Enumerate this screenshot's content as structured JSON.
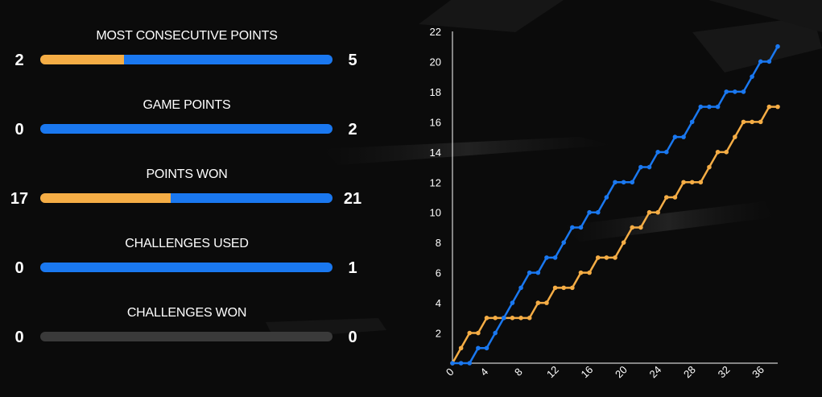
{
  "colors": {
    "team_a": "#f5ad45",
    "team_b": "#1a78f0",
    "neutral": "#3a3a3a"
  },
  "stats": [
    {
      "label": "MOST CONSECUTIVE POINTS",
      "left": "2",
      "right": "5",
      "a": 2,
      "b": 5
    },
    {
      "label": "GAME POINTS",
      "left": "0",
      "right": "2",
      "a": 0,
      "b": 2
    },
    {
      "label": "POINTS WON",
      "left": "17",
      "right": "21",
      "a": 17,
      "b": 21
    },
    {
      "label": "CHALLENGES USED",
      "left": "0",
      "right": "1",
      "a": 0,
      "b": 1
    },
    {
      "label": "CHALLENGES WON",
      "left": "0",
      "right": "0",
      "a": 0,
      "b": 0
    }
  ],
  "chart_data": {
    "type": "line",
    "xlim": [
      0,
      38
    ],
    "ylim": [
      0,
      22
    ],
    "x_ticks": [
      0,
      4,
      8,
      12,
      16,
      20,
      24,
      28,
      32,
      36
    ],
    "y_ticks": [
      2,
      4,
      6,
      8,
      10,
      12,
      14,
      16,
      18,
      20,
      22
    ],
    "grid": false,
    "series": [
      {
        "color": "#1a78f0",
        "x": [
          0,
          1,
          2,
          3,
          4,
          5,
          6,
          7,
          8,
          9,
          10,
          11,
          12,
          13,
          14,
          15,
          16,
          17,
          18,
          19,
          20,
          21,
          22,
          23,
          24,
          25,
          26,
          27,
          28,
          29,
          30,
          31,
          32,
          33,
          34,
          35,
          36,
          37,
          38
        ],
        "y": [
          0,
          0,
          0,
          1,
          1,
          2,
          3,
          4,
          5,
          6,
          6,
          7,
          7,
          8,
          9,
          9,
          10,
          10,
          11,
          12,
          12,
          12,
          13,
          13,
          14,
          14,
          15,
          15,
          16,
          17,
          17,
          17,
          18,
          18,
          18,
          19,
          20,
          20,
          21
        ]
      },
      {
        "color": "#f5ad45",
        "x": [
          0,
          1,
          2,
          3,
          4,
          5,
          6,
          7,
          8,
          9,
          10,
          11,
          12,
          13,
          14,
          15,
          16,
          17,
          18,
          19,
          20,
          21,
          22,
          23,
          24,
          25,
          26,
          27,
          28,
          29,
          30,
          31,
          32,
          33,
          34,
          35,
          36,
          37,
          38
        ],
        "y": [
          0,
          1,
          2,
          2,
          3,
          3,
          3,
          3,
          3,
          3,
          4,
          4,
          5,
          5,
          5,
          6,
          6,
          7,
          7,
          7,
          8,
          9,
          9,
          10,
          10,
          11,
          11,
          12,
          12,
          12,
          13,
          14,
          14,
          15,
          16,
          16,
          16,
          17,
          17
        ]
      }
    ]
  }
}
